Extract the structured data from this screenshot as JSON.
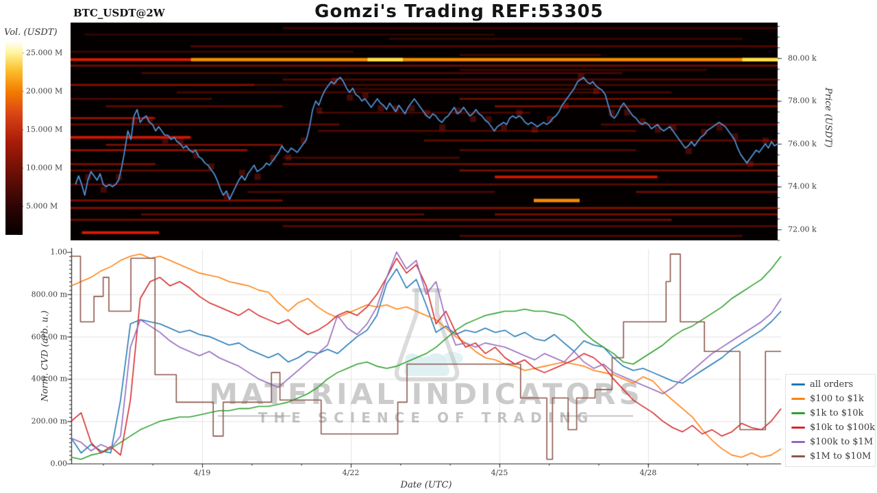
{
  "title": "Gomzi's Trading REF:53305",
  "symbol_label": "BTC_USDT@2W",
  "watermark": {
    "line1": "MATERIAL INDICATORS",
    "line2": "THE SCIENCE OF TRADING"
  },
  "chart_data": [
    {
      "type": "heatmap",
      "name": "orderbook-volume-heatmap",
      "colorbar_label": "Vol. (USDT)",
      "colorbar_ticks": [
        "25.000 M",
        "20.000 M",
        "15.000 M",
        "10.000 M",
        "5.000 M"
      ],
      "price_axis_label": "Price (USDT)",
      "price_tick_labels": [
        "80.00 k",
        "78.00 k",
        "76.00 k",
        "74.00 k",
        "72.00 k"
      ],
      "price_tick_values": [
        80,
        78,
        76,
        74,
        72
      ],
      "ylim_price_k": [
        71.49,
        81.66
      ],
      "background": "#050000",
      "bands": [
        [
          81.4,
          0.3,
          1.0,
          0.22,
          "r"
        ],
        [
          81.1,
          0.02,
          0.6,
          0.16,
          "r"
        ],
        [
          80.9,
          0.45,
          0.95,
          0.2,
          "r"
        ],
        [
          80.55,
          0.17,
          1.0,
          0.3,
          "r"
        ],
        [
          80.3,
          0.0,
          0.4,
          0.18,
          "r"
        ],
        [
          80.15,
          0.55,
          0.75,
          0.22,
          "r"
        ],
        [
          79.93,
          0.0,
          0.17,
          0.85,
          "r"
        ],
        [
          79.93,
          0.17,
          1.0,
          0.95,
          "o"
        ],
        [
          79.93,
          0.42,
          0.47,
          1.0,
          "y"
        ],
        [
          79.93,
          0.95,
          1.0,
          1.0,
          "y"
        ],
        [
          79.65,
          0.0,
          1.0,
          0.4,
          "r"
        ],
        [
          79.45,
          0.55,
          0.9,
          0.2,
          "r"
        ],
        [
          79.3,
          0.1,
          0.78,
          0.25,
          "r"
        ],
        [
          79.0,
          0.3,
          1.0,
          0.3,
          "r"
        ],
        [
          78.75,
          0.0,
          0.26,
          0.5,
          "r"
        ],
        [
          78.75,
          0.26,
          1.0,
          0.25,
          "r"
        ],
        [
          78.55,
          0.4,
          0.75,
          0.2,
          "r"
        ],
        [
          78.4,
          0.15,
          0.85,
          0.25,
          "r"
        ],
        [
          78.1,
          0.55,
          1.0,
          0.4,
          "r"
        ],
        [
          78.1,
          0.0,
          0.2,
          0.28,
          "r"
        ],
        [
          77.75,
          0.6,
          1.0,
          0.45,
          "r"
        ],
        [
          77.75,
          0.05,
          0.3,
          0.35,
          "r"
        ],
        [
          77.45,
          0.35,
          0.65,
          0.25,
          "r"
        ],
        [
          77.2,
          0.0,
          0.12,
          0.55,
          "r"
        ],
        [
          76.9,
          0.0,
          0.38,
          0.35,
          "r"
        ],
        [
          76.9,
          0.75,
          1.0,
          0.3,
          "r"
        ],
        [
          76.6,
          0.35,
          0.8,
          0.28,
          "r"
        ],
        [
          76.3,
          0.0,
          0.17,
          0.8,
          "r"
        ],
        [
          76.15,
          0.5,
          1.0,
          0.35,
          "r"
        ],
        [
          75.95,
          0.05,
          0.3,
          0.45,
          "r"
        ],
        [
          75.7,
          0.0,
          0.25,
          0.55,
          "r"
        ],
        [
          75.7,
          0.55,
          0.8,
          0.3,
          "r"
        ],
        [
          75.35,
          0.3,
          0.55,
          0.25,
          "r"
        ],
        [
          75.05,
          0.0,
          0.12,
          0.45,
          "r"
        ],
        [
          75.05,
          0.3,
          1.0,
          0.4,
          "r"
        ],
        [
          74.75,
          0.55,
          1.0,
          0.45,
          "r"
        ],
        [
          74.75,
          0.0,
          0.2,
          0.35,
          "r"
        ],
        [
          74.45,
          0.6,
          0.83,
          0.8,
          "r"
        ],
        [
          74.1,
          0.0,
          1.0,
          0.32,
          "r"
        ],
        [
          73.75,
          0.25,
          0.6,
          0.26,
          "r"
        ],
        [
          73.75,
          0.8,
          1.0,
          0.4,
          "r"
        ],
        [
          73.35,
          0.655,
          0.72,
          0.95,
          "o"
        ],
        [
          73.35,
          0.0,
          0.3,
          0.45,
          "r"
        ],
        [
          73.0,
          0.0,
          1.0,
          0.5,
          "r"
        ],
        [
          72.7,
          0.1,
          0.5,
          0.35,
          "r"
        ],
        [
          72.7,
          0.6,
          1.0,
          0.45,
          "r"
        ],
        [
          72.45,
          0.0,
          0.85,
          0.42,
          "r"
        ],
        [
          72.15,
          0.3,
          1.0,
          0.3,
          "r"
        ],
        [
          71.85,
          0.016,
          0.125,
          0.85,
          "r"
        ],
        [
          71.7,
          0.55,
          0.95,
          0.28,
          "r"
        ]
      ],
      "price_line": {
        "color": "#4e91d5",
        "x_start": 0.007,
        "x_end": 1.0,
        "prices_k": [
          74.1,
          74.5,
          74.1,
          73.6,
          74.3,
          74.7,
          74.5,
          74.3,
          74.6,
          74.1,
          74.0,
          74.1,
          74.0,
          74.1,
          74.3,
          74.9,
          75.7,
          76.6,
          76.2,
          77.3,
          77.6,
          77.0,
          77.2,
          77.3,
          77.0,
          76.9,
          76.6,
          76.8,
          76.6,
          76.4,
          76.4,
          76.2,
          76.3,
          76.1,
          76.0,
          75.8,
          75.9,
          75.7,
          75.6,
          75.7,
          75.4,
          75.3,
          75.1,
          75.0,
          74.8,
          74.6,
          74.3,
          73.9,
          73.6,
          73.8,
          73.4,
          73.7,
          74.0,
          74.3,
          74.5,
          74.3,
          74.6,
          74.8,
          75.0,
          74.7,
          74.8,
          74.9,
          75.1,
          75.0,
          75.2,
          75.4,
          75.6,
          75.9,
          75.7,
          75.6,
          75.8,
          75.7,
          75.6,
          75.8,
          76.0,
          76.2,
          76.8,
          77.6,
          78.0,
          77.8,
          78.2,
          78.5,
          78.7,
          78.9,
          78.8,
          79.0,
          79.1,
          78.9,
          78.6,
          78.4,
          78.6,
          78.3,
          78.2,
          78.0,
          78.1,
          77.9,
          77.7,
          77.9,
          78.1,
          77.9,
          77.8,
          77.6,
          77.9,
          77.7,
          77.5,
          77.8,
          77.6,
          77.4,
          77.7,
          77.9,
          78.1,
          77.9,
          77.7,
          77.5,
          77.3,
          77.2,
          77.4,
          77.3,
          77.1,
          77.0,
          77.2,
          77.3,
          77.5,
          77.7,
          77.4,
          77.5,
          77.7,
          77.5,
          77.3,
          77.4,
          77.6,
          77.4,
          77.3,
          77.1,
          77.0,
          76.8,
          76.6,
          76.8,
          76.9,
          77.0,
          76.9,
          77.2,
          77.3,
          77.2,
          77.3,
          77.2,
          77.0,
          76.9,
          77.0,
          76.9,
          76.8,
          76.9,
          77.0,
          76.9,
          77.0,
          77.2,
          77.3,
          77.5,
          77.8,
          78.0,
          78.2,
          78.4,
          78.6,
          78.9,
          79.0,
          79.1,
          78.9,
          78.8,
          78.9,
          78.7,
          78.6,
          78.5,
          78.3,
          77.8,
          77.3,
          77.2,
          77.4,
          77.7,
          77.9,
          77.7,
          77.5,
          77.3,
          77.2,
          77.0,
          76.9,
          77.0,
          76.9,
          76.7,
          76.8,
          76.9,
          76.7,
          76.6,
          76.7,
          76.8,
          76.6,
          76.4,
          76.2,
          76.0,
          75.8,
          75.9,
          76.1,
          75.9,
          76.1,
          76.3,
          76.4,
          76.6,
          76.7,
          76.8,
          76.9,
          77.0,
          76.9,
          76.8,
          76.6,
          76.4,
          76.2,
          75.8,
          75.5,
          75.3,
          75.1,
          75.3,
          75.5,
          75.7,
          75.6,
          75.8,
          76.0,
          75.8,
          76.1,
          75.9,
          76.0
        ]
      }
    },
    {
      "type": "line",
      "name": "normalized-cvd",
      "xlabel": "Date (UTC)",
      "ylabel": "Norm. CVD (arb. u.)",
      "x_tick_labels": [
        "4/19",
        "4/22",
        "4/25",
        "4/28"
      ],
      "x_tick_f": [
        0.1844,
        0.3938,
        0.6032,
        0.8126
      ],
      "x_minor_step_f": 0.0698,
      "y_tick_labels": [
        "1.00",
        "800.00 m",
        "600.00 m",
        "400.00 m",
        "200.00 m",
        "0.00"
      ],
      "y_tick_values": [
        1.0,
        0.8,
        0.6,
        0.4,
        0.2,
        0.0
      ],
      "ylim": [
        0,
        1
      ],
      "grid": true,
      "legend_position": "right",
      "series": [
        {
          "name": "all orders",
          "color": "#1f77b4",
          "y": [
            0.12,
            0.05,
            0.09,
            0.06,
            0.05,
            0.3,
            0.66,
            0.68,
            0.67,
            0.66,
            0.64,
            0.62,
            0.63,
            0.61,
            0.6,
            0.58,
            0.56,
            0.57,
            0.54,
            0.52,
            0.5,
            0.52,
            0.48,
            0.5,
            0.53,
            0.52,
            0.54,
            0.52,
            0.56,
            0.6,
            0.63,
            0.7,
            0.85,
            0.92,
            0.83,
            0.87,
            0.75,
            0.62,
            0.65,
            0.61,
            0.63,
            0.62,
            0.64,
            0.62,
            0.63,
            0.6,
            0.62,
            0.59,
            0.58,
            0.61,
            0.57,
            0.53,
            0.58,
            0.56,
            0.55,
            0.5,
            0.46,
            0.44,
            0.45,
            0.43,
            0.41,
            0.39,
            0.38,
            0.41,
            0.44,
            0.47,
            0.5,
            0.54,
            0.57,
            0.6,
            0.63,
            0.67,
            0.72
          ]
        },
        {
          "name": "$100 to $1k",
          "color": "#ff7f0e",
          "y": [
            0.84,
            0.86,
            0.88,
            0.91,
            0.93,
            0.96,
            0.98,
            0.99,
            0.97,
            0.98,
            0.96,
            0.94,
            0.92,
            0.9,
            0.89,
            0.88,
            0.86,
            0.85,
            0.84,
            0.82,
            0.81,
            0.76,
            0.72,
            0.76,
            0.78,
            0.74,
            0.71,
            0.69,
            0.71,
            0.73,
            0.75,
            0.74,
            0.75,
            0.73,
            0.74,
            0.72,
            0.7,
            0.68,
            0.64,
            0.6,
            0.57,
            0.53,
            0.5,
            0.49,
            0.47,
            0.46,
            0.44,
            0.45,
            0.46,
            0.47,
            0.48,
            0.47,
            0.46,
            0.44,
            0.43,
            0.42,
            0.4,
            0.38,
            0.41,
            0.39,
            0.34,
            0.3,
            0.26,
            0.22,
            0.16,
            0.11,
            0.07,
            0.04,
            0.03,
            0.05,
            0.03,
            0.04,
            0.07
          ]
        },
        {
          "name": "$1k to $10k",
          "color": "#2ca02c",
          "y": [
            0.03,
            0.02,
            0.04,
            0.05,
            0.07,
            0.1,
            0.13,
            0.16,
            0.18,
            0.2,
            0.21,
            0.22,
            0.22,
            0.23,
            0.24,
            0.25,
            0.25,
            0.26,
            0.26,
            0.27,
            0.27,
            0.28,
            0.29,
            0.31,
            0.33,
            0.36,
            0.4,
            0.43,
            0.45,
            0.47,
            0.48,
            0.46,
            0.45,
            0.46,
            0.48,
            0.5,
            0.52,
            0.55,
            0.59,
            0.63,
            0.66,
            0.68,
            0.7,
            0.71,
            0.72,
            0.72,
            0.73,
            0.72,
            0.72,
            0.71,
            0.7,
            0.67,
            0.62,
            0.58,
            0.55,
            0.52,
            0.48,
            0.47,
            0.5,
            0.53,
            0.56,
            0.6,
            0.63,
            0.65,
            0.68,
            0.71,
            0.74,
            0.78,
            0.81,
            0.84,
            0.87,
            0.92,
            0.98
          ]
        },
        {
          "name": "$10k to $100k",
          "color": "#d62728",
          "y": [
            0.2,
            0.24,
            0.1,
            0.05,
            0.08,
            0.04,
            0.3,
            0.78,
            0.86,
            0.88,
            0.84,
            0.86,
            0.83,
            0.79,
            0.76,
            0.74,
            0.72,
            0.7,
            0.73,
            0.7,
            0.68,
            0.66,
            0.68,
            0.64,
            0.61,
            0.63,
            0.66,
            0.7,
            0.72,
            0.7,
            0.74,
            0.8,
            0.88,
            0.97,
            0.9,
            0.94,
            0.84,
            0.66,
            0.72,
            0.62,
            0.55,
            0.57,
            0.52,
            0.55,
            0.5,
            0.47,
            0.49,
            0.45,
            0.43,
            0.45,
            0.47,
            0.49,
            0.52,
            0.5,
            0.46,
            0.4,
            0.35,
            0.3,
            0.27,
            0.24,
            0.2,
            0.17,
            0.15,
            0.18,
            0.14,
            0.16,
            0.13,
            0.15,
            0.19,
            0.17,
            0.16,
            0.2,
            0.26
          ]
        },
        {
          "name": "$100k to $1M",
          "color": "#9467bd",
          "y": [
            0.12,
            0.1,
            0.06,
            0.09,
            0.07,
            0.13,
            0.55,
            0.68,
            0.65,
            0.62,
            0.58,
            0.55,
            0.53,
            0.51,
            0.53,
            0.5,
            0.48,
            0.46,
            0.43,
            0.4,
            0.38,
            0.36,
            0.4,
            0.44,
            0.48,
            0.52,
            0.56,
            0.7,
            0.64,
            0.61,
            0.66,
            0.74,
            0.88,
            1.0,
            0.92,
            0.96,
            0.8,
            0.86,
            0.68,
            0.56,
            0.57,
            0.55,
            0.57,
            0.56,
            0.55,
            0.53,
            0.51,
            0.49,
            0.52,
            0.5,
            0.48,
            0.53,
            0.48,
            0.45,
            0.47,
            0.43,
            0.41,
            0.39,
            0.37,
            0.35,
            0.33,
            0.36,
            0.4,
            0.44,
            0.48,
            0.52,
            0.55,
            0.58,
            0.61,
            0.64,
            0.67,
            0.71,
            0.78
          ]
        },
        {
          "name": "$1M to $10M",
          "color": "#8c564b",
          "steps": [
            [
              0.0,
              0.98
            ],
            [
              0.013,
              0.67
            ],
            [
              0.032,
              0.79
            ],
            [
              0.045,
              0.88
            ],
            [
              0.053,
              0.72
            ],
            [
              0.084,
              0.97
            ],
            [
              0.118,
              0.42
            ],
            [
              0.148,
              0.29
            ],
            [
              0.2,
              0.13
            ],
            [
              0.214,
              0.29
            ],
            [
              0.282,
              0.43
            ],
            [
              0.294,
              0.3
            ],
            [
              0.352,
              0.14
            ],
            [
              0.46,
              0.29
            ],
            [
              0.473,
              0.47
            ],
            [
              0.633,
              0.31
            ],
            [
              0.67,
              0.02
            ],
            [
              0.678,
              0.31
            ],
            [
              0.7,
              0.16
            ],
            [
              0.712,
              0.31
            ],
            [
              0.738,
              0.35
            ],
            [
              0.762,
              0.5
            ],
            [
              0.778,
              0.67
            ],
            [
              0.838,
              0.86
            ],
            [
              0.844,
              0.99
            ],
            [
              0.858,
              0.67
            ],
            [
              0.892,
              0.53
            ],
            [
              0.942,
              0.16
            ],
            [
              0.978,
              0.53
            ]
          ]
        }
      ]
    }
  ]
}
